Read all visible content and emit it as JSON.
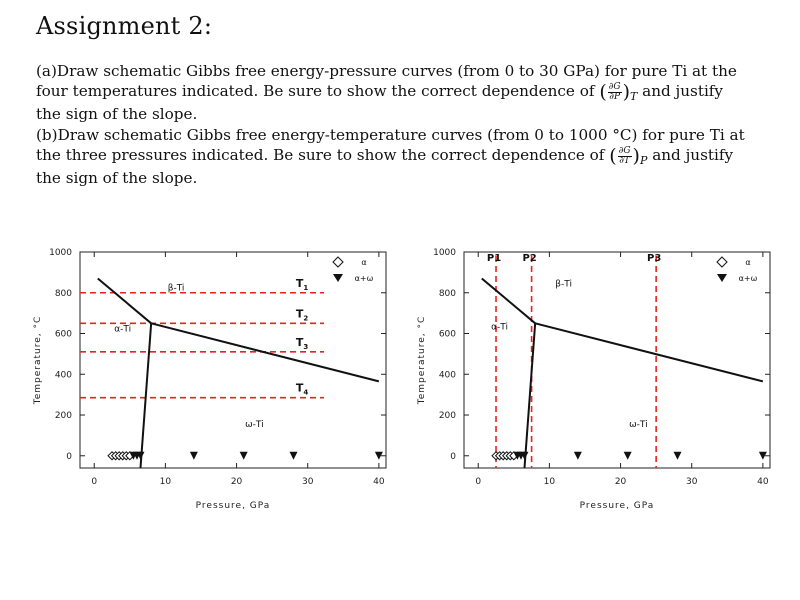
{
  "document": {
    "title": "Assignment 2:",
    "part_a": {
      "line1": "(a)Draw schematic Gibbs free energy-pressure curves (from 0 to 30 GPa) for pure Ti at the",
      "line2_pre": "four temperatures indicated.  Be sure to show the correct dependence of",
      "deriv_num": "∂G",
      "deriv_den": "∂P",
      "deriv_sub": "T",
      "line2_post": "and justify",
      "line3": "the sign of the slope."
    },
    "part_b": {
      "line1": "(b)Draw schematic Gibbs free energy-temperature curves (from 0 to 1000 °C) for pure Ti at",
      "line2_pre": "the three pressures indicated.  Be sure to show the correct dependence of",
      "deriv_num": "∂G",
      "deriv_den": "∂T",
      "deriv_sub": "P",
      "line2_post": "and justify",
      "line3": "the sign of the slope."
    }
  },
  "chart_data": [
    {
      "type": "scatter",
      "xlabel": "Pressure, GPa",
      "ylabel": "Temperature, °C",
      "xlim": [
        -2,
        41
      ],
      "ylim": [
        -60,
        1000
      ],
      "xticks": [
        0,
        10,
        20,
        30,
        40
      ],
      "yticks": [
        0,
        200,
        400,
        600,
        800,
        1000
      ],
      "legend": [
        {
          "symbol": "◇",
          "label": "α"
        },
        {
          "symbol": "▼",
          "label": "α+ω"
        }
      ],
      "phase_boundaries": [
        [
          [
            0.5,
            870
          ],
          [
            8,
            650
          ]
        ],
        [
          [
            8,
            650
          ],
          [
            40,
            365
          ]
        ],
        [
          [
            8,
            650
          ],
          [
            6.5,
            -60
          ]
        ]
      ],
      "phase_labels": [
        {
          "text": "β-Ti",
          "x": 11.5,
          "y": 810
        },
        {
          "text": "α-Ti",
          "x": 4,
          "y": 610
        },
        {
          "text": "ω-Ti",
          "x": 22.5,
          "y": 140
        }
      ],
      "reference_lines": [
        {
          "label": "T",
          "index": "1",
          "y": 800
        },
        {
          "label": "T",
          "index": "2",
          "y": 650
        },
        {
          "label": "T",
          "index": "3",
          "y": 510
        },
        {
          "label": "T",
          "index": "4",
          "y": 285
        }
      ],
      "alpha_points": [
        [
          2.5,
          0
        ],
        [
          3.0,
          0
        ],
        [
          3.5,
          0
        ],
        [
          4.0,
          0
        ],
        [
          4.5,
          0
        ],
        [
          5.0,
          0
        ]
      ],
      "alpha_omega_points": [
        [
          5.5,
          0
        ],
        [
          6.0,
          0
        ],
        [
          6.5,
          0
        ],
        [
          14.0,
          0
        ],
        [
          21.0,
          0
        ],
        [
          28.0,
          0
        ],
        [
          40.0,
          0
        ]
      ]
    },
    {
      "type": "scatter",
      "xlabel": "Pressure, GPa",
      "ylabel": "Temperature, °C",
      "xlim": [
        -2,
        41
      ],
      "ylim": [
        -60,
        1000
      ],
      "xticks": [
        0,
        10,
        20,
        30,
        40
      ],
      "yticks": [
        0,
        200,
        400,
        600,
        800,
        1000
      ],
      "legend": [
        {
          "symbol": "◇",
          "label": "α"
        },
        {
          "symbol": "▼",
          "label": "α+ω"
        }
      ],
      "phase_boundaries": [
        [
          [
            0.5,
            870
          ],
          [
            8,
            650
          ]
        ],
        [
          [
            8,
            650
          ],
          [
            40,
            365
          ]
        ],
        [
          [
            8,
            650
          ],
          [
            6.5,
            -60
          ]
        ]
      ],
      "phase_labels": [
        {
          "text": "β-Ti",
          "x": 12,
          "y": 830
        },
        {
          "text": "α-Ti",
          "x": 3,
          "y": 620
        },
        {
          "text": "ω-Ti",
          "x": 22.5,
          "y": 140
        }
      ],
      "reference_lines": [
        {
          "label": "P1",
          "x": 2.5
        },
        {
          "label": "P2",
          "x": 7.5
        },
        {
          "label": "P3",
          "x": 25
        }
      ],
      "alpha_points": [
        [
          2.5,
          0
        ],
        [
          3.0,
          0
        ],
        [
          3.5,
          0
        ],
        [
          4.0,
          0
        ],
        [
          4.5,
          0
        ],
        [
          5.0,
          0
        ]
      ],
      "alpha_omega_points": [
        [
          5.5,
          0
        ],
        [
          6.0,
          0
        ],
        [
          6.5,
          0
        ],
        [
          14.0,
          0
        ],
        [
          21.0,
          0
        ],
        [
          28.0,
          0
        ],
        [
          40.0,
          0
        ]
      ]
    }
  ],
  "colors": {
    "reference_line": "#e8231e",
    "boundary": "#111111",
    "text": "#111111"
  }
}
